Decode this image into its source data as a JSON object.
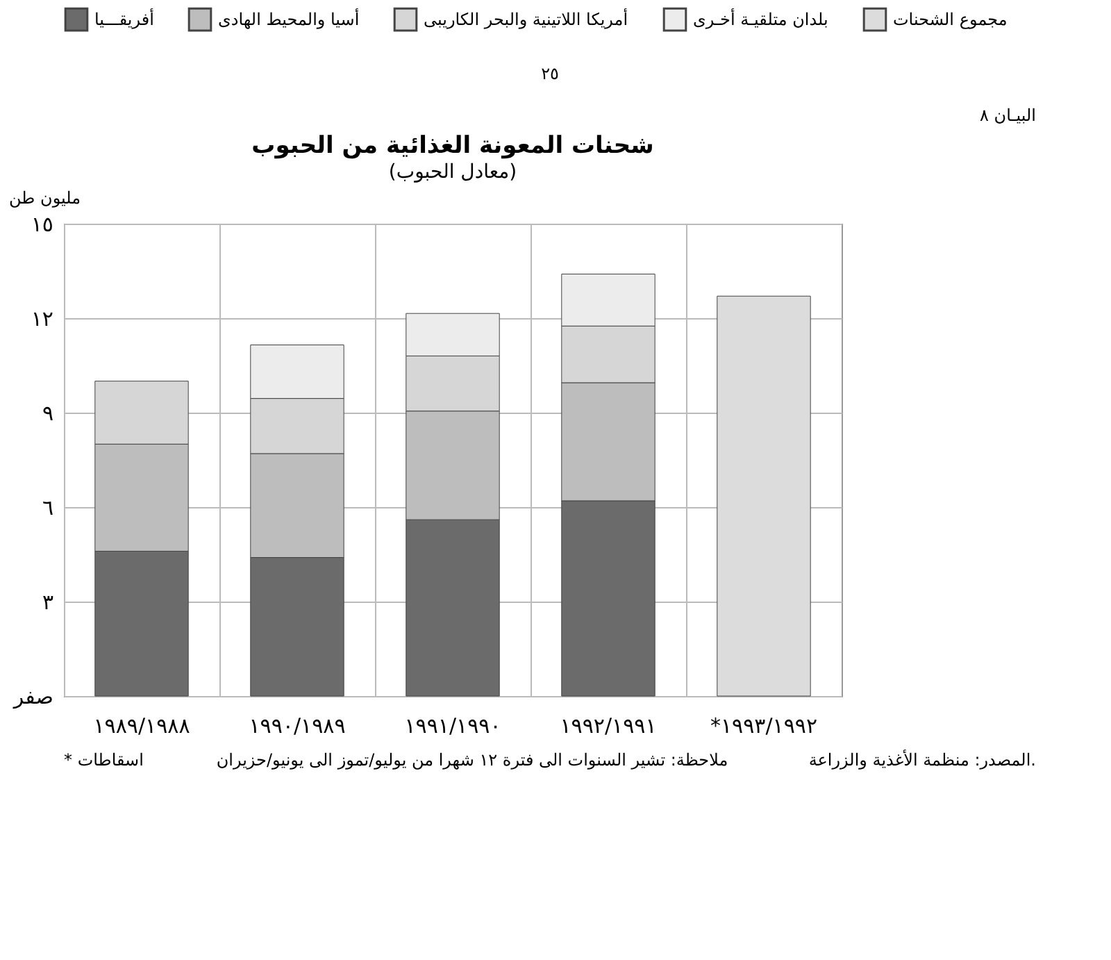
{
  "chart_data": {
    "type": "bar",
    "stacked": true,
    "title": "شحنات المعونة الغذائية من الحبوب",
    "subtitle": "(معادل الحبوب)",
    "ylabel": "مليون طن",
    "categories": [
      "١٩٨٩/١٩٨٨",
      "١٩٩٠/١٩٨٩",
      "١٩٩١/١٩٩٠",
      "١٩٩٢/١٩٩١",
      "*١٩٩٣/١٩٩٢"
    ],
    "series": [
      {
        "name": "أفريقـــيا",
        "color": "#6b6b6b",
        "values": [
          4.6,
          4.4,
          5.6,
          6.2,
          null
        ]
      },
      {
        "name": "أسيا والمحيط الهادى",
        "color": "#bdbdbd",
        "values": [
          3.4,
          3.3,
          3.45,
          3.75,
          null
        ]
      },
      {
        "name": "أمريكا اللاتينية والبحر الكاريبى",
        "color": "#d6d6d6",
        "values": [
          2.0,
          1.75,
          1.75,
          1.8,
          null
        ]
      },
      {
        "name": "بلدان متلقيـة أخـرى",
        "color": "#ececec",
        "values": [
          null,
          1.7,
          1.35,
          1.65,
          null
        ]
      },
      {
        "name": "مجموع الشحنات",
        "color": "#dcdcdc",
        "values": [
          null,
          null,
          null,
          null,
          12.7
        ]
      }
    ],
    "ylim": [
      0,
      15
    ],
    "yticks": [
      {
        "value": 0,
        "label": "صفر"
      },
      {
        "value": 3,
        "label": "٣"
      },
      {
        "value": 6,
        "label": "٦"
      },
      {
        "value": 9,
        "label": "٩"
      },
      {
        "value": 12,
        "label": "١٢"
      },
      {
        "value": 15,
        "label": "١٥"
      }
    ],
    "grid": true,
    "legend": "top",
    "annotations": [
      "٢٥",
      "البيـان ٨",
      "المصدر: منظمة الأغذية والزراعة.",
      "ملاحظة: تشير السنوات الى فترة ١٢ شهرا من يوليو/تموز الى يونيو/حزيران",
      "* اسقاطات"
    ]
  }
}
